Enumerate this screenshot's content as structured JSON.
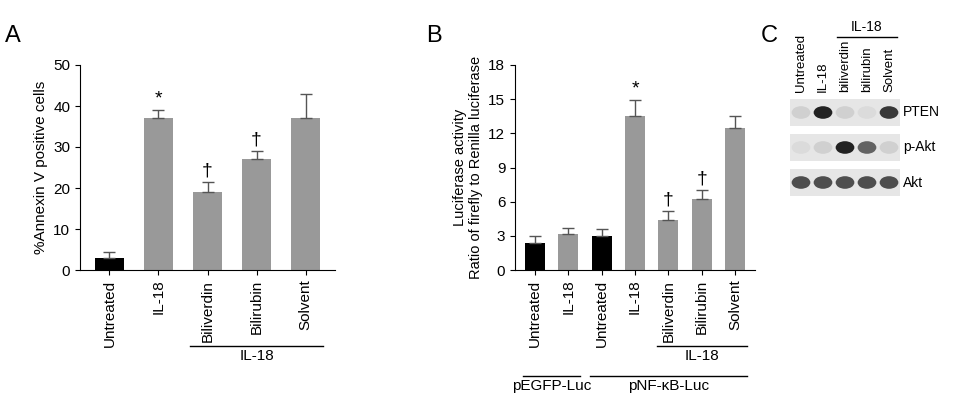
{
  "chart_data": [
    {
      "type": "bar",
      "title": "A",
      "y_label": "%Annexin V positive cells",
      "categories": [
        "Untreated",
        "IL-18",
        "Biliverdin",
        "Bilirubin",
        "Solvent"
      ],
      "values": [
        3,
        37,
        19,
        27,
        37
      ],
      "errors": [
        1.5,
        2,
        2.5,
        2,
        6
      ],
      "colors": [
        "#000000",
        "#999999",
        "#999999",
        "#999999",
        "#999999"
      ],
      "annotations": [
        null,
        "*",
        "†",
        "†",
        null
      ],
      "groups": [
        {
          "label": "IL-18",
          "from": 2,
          "to": 4
        }
      ],
      "ylim": [
        0,
        50
      ],
      "yticks": [
        0,
        10,
        20,
        30,
        40,
        50
      ]
    },
    {
      "type": "bar",
      "title": "B",
      "y_label": "Luciferase activity\nRatio of firefly to Renilla luciferase",
      "categories": [
        "Untreated",
        "IL-18",
        "Untreated",
        "IL-18",
        "Biliverdin",
        "Bilirubin",
        "Solvent"
      ],
      "values": [
        2.4,
        3.2,
        3.0,
        13.5,
        4.4,
        6.2,
        12.5
      ],
      "errors": [
        0.6,
        0.5,
        0.6,
        1.4,
        0.8,
        0.8,
        1.0
      ],
      "colors": [
        "#000000",
        "#999999",
        "#000000",
        "#999999",
        "#999999",
        "#999999",
        "#999999"
      ],
      "annotations": [
        null,
        null,
        null,
        "*",
        "†",
        "†",
        null
      ],
      "groups": [
        {
          "label": "IL-18",
          "from": 4,
          "to": 6
        },
        {
          "label": "pEGFP-Luc",
          "from": 0,
          "to": 1
        },
        {
          "label": "pNF-κB-Luc",
          "from": 2,
          "to": 6
        }
      ],
      "ylim": [
        0,
        18
      ],
      "yticks": [
        0,
        3,
        6,
        9,
        12,
        15,
        18
      ]
    }
  ],
  "blot": {
    "title": "C",
    "lanes": [
      "Untreated",
      "IL-18",
      "biliverdin",
      "bilirubin",
      "Solvent"
    ],
    "groups": [
      {
        "label": "IL-18",
        "from": 2,
        "to": 4
      }
    ],
    "rows": [
      {
        "label": "PTEN",
        "intensity": [
          0.1,
          0.9,
          0.1,
          0.05,
          0.8
        ]
      },
      {
        "label": "p-Akt",
        "intensity": [
          0.05,
          0.1,
          0.9,
          0.6,
          0.1
        ]
      },
      {
        "label": "Akt",
        "intensity": [
          0.7,
          0.7,
          0.7,
          0.7,
          0.7
        ]
      }
    ]
  }
}
